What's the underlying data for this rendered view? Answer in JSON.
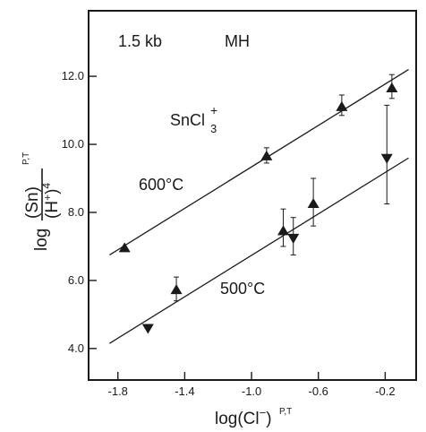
{
  "chart_data": {
    "type": "scatter",
    "title": "",
    "annotations": {
      "pressure": "1.5 kb",
      "buffer": "MH",
      "species": "SnCl",
      "species_sub": "3",
      "species_sup": "+"
    },
    "xlabel": {
      "main": "log(Cl",
      "sup": "−",
      "close": ")",
      "pt": "P,T"
    },
    "ylabel": {
      "prefix": "log",
      "numerator": "(Sn)",
      "denominator": "(H",
      "den_sup": "+",
      "den_close": ")",
      "den_pow": "4",
      "pt": "P,T"
    },
    "xlim": [
      -1.97,
      -0.02
    ],
    "ylim": [
      3.1,
      13.9
    ],
    "x_ticks": [
      -1.8,
      -1.4,
      -1.0,
      -0.6,
      -0.2
    ],
    "x_tick_labels": [
      "-1.8",
      "-1.4",
      "-1.0",
      "-0.6",
      "-0.2"
    ],
    "y_ticks": [
      4.0,
      6.0,
      8.0,
      10.0,
      12.0
    ],
    "y_tick_labels": [
      "4.0",
      "6.0",
      "8.0",
      "10.0",
      "12.0"
    ],
    "grid": false,
    "series": [
      {
        "name": "600°C",
        "marker": "triangle-up",
        "color": "#1a1a1a",
        "points": [
          {
            "x": -1.76,
            "y": 6.95,
            "err_low": null,
            "err_high": null
          },
          {
            "x": -1.45,
            "y": 5.72,
            "err_low": 5.4,
            "err_high": 6.1
          },
          {
            "x": -0.91,
            "y": 9.65,
            "err_low": 9.45,
            "err_high": 9.9
          },
          {
            "x": -0.81,
            "y": 7.45,
            "err_low": 7.0,
            "err_high": 8.1
          },
          {
            "x": -0.63,
            "y": 8.25,
            "err_low": 7.6,
            "err_high": 9.0
          },
          {
            "x": -0.46,
            "y": 11.1,
            "err_low": 10.85,
            "err_high": 11.45
          },
          {
            "x": -0.16,
            "y": 11.65,
            "err_low": 11.35,
            "err_high": 12.05
          }
        ],
        "fit_line": {
          "x": [
            -1.85,
            -0.06
          ],
          "y": [
            6.75,
            12.2
          ]
        },
        "label": "600°C"
      },
      {
        "name": "500°C",
        "marker": "triangle-down",
        "color": "#1a1a1a",
        "points": [
          {
            "x": -1.62,
            "y": 4.6,
            "err_low": null,
            "err_high": null
          },
          {
            "x": -0.75,
            "y": 7.25,
            "err_low": 6.75,
            "err_high": 7.85
          },
          {
            "x": -0.19,
            "y": 9.6,
            "err_low": 8.25,
            "err_high": 11.15
          }
        ],
        "fit_line": {
          "x": [
            -1.85,
            -0.06
          ],
          "y": [
            4.15,
            9.6
          ]
        },
        "label": "500°C"
      }
    ]
  }
}
